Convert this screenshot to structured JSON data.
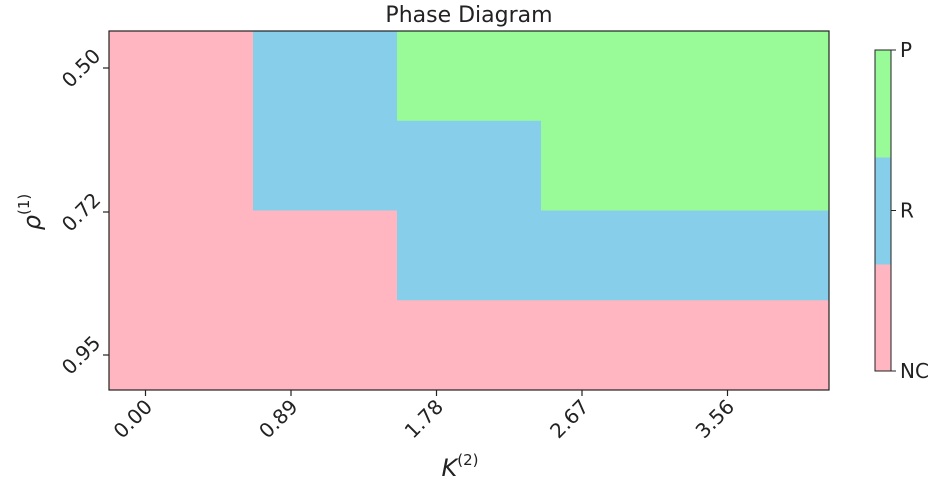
{
  "chart_data": {
    "type": "heatmap",
    "title": "Phase Diagram",
    "xlabel": "K",
    "xlabel_superscript": "(2)",
    "ylabel": "ρ",
    "ylabel_superscript": "(1)",
    "x_ticks": [
      "0.00",
      "0.89",
      "1.78",
      "2.67",
      "3.56"
    ],
    "y_ticks": [
      "0.50",
      "0.72",
      "0.95"
    ],
    "colorbar": {
      "levels": [
        "NC",
        "R",
        "P"
      ],
      "colors": {
        "NC": "#FFB6C1",
        "R": "#87CEEB",
        "P": "#98FB98"
      }
    },
    "note_grid": "rows listed top (y=0.50 side) to bottom (y=0.95 side); columns left (x=0.00) to right",
    "grid": [
      [
        "NC",
        "R",
        "P",
        "P",
        "P"
      ],
      [
        "NC",
        "R",
        "R",
        "P",
        "P"
      ],
      [
        "NC",
        "NC",
        "R",
        "R",
        "R"
      ],
      [
        "NC",
        "NC",
        "NC",
        "NC",
        "NC"
      ]
    ]
  }
}
